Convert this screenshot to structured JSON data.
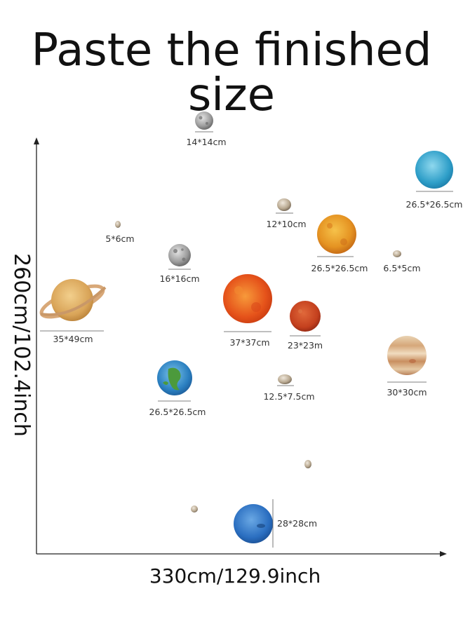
{
  "title": "Paste the finished size",
  "x_axis_label": "330cm/129.9inch",
  "y_axis_label": "260cm/102.4inch",
  "items": [
    {
      "label": "14*14cm",
      "kind": "moon"
    },
    {
      "label": "26.5*26.5cm",
      "kind": "uranus"
    },
    {
      "label": "5*6cm",
      "kind": "rock"
    },
    {
      "label": "12*10cm",
      "kind": "rock"
    },
    {
      "label": "16*16cm",
      "kind": "moon"
    },
    {
      "label": "26.5*26.5cm",
      "kind": "venus"
    },
    {
      "label": "6.5*5cm",
      "kind": "rock"
    },
    {
      "label": "35*49cm",
      "kind": "saturn"
    },
    {
      "label": "37*37cm",
      "kind": "sun"
    },
    {
      "label": "23*23m",
      "kind": "mars"
    },
    {
      "label": "30*30cm",
      "kind": "jupiter"
    },
    {
      "label": "26.5*26.5cm",
      "kind": "earth"
    },
    {
      "label": "12.5*7.5cm",
      "kind": "rock"
    },
    {
      "label": "28*28cm",
      "kind": "neptune"
    }
  ],
  "colors": {
    "text": "#111111",
    "axis": "#222222"
  }
}
